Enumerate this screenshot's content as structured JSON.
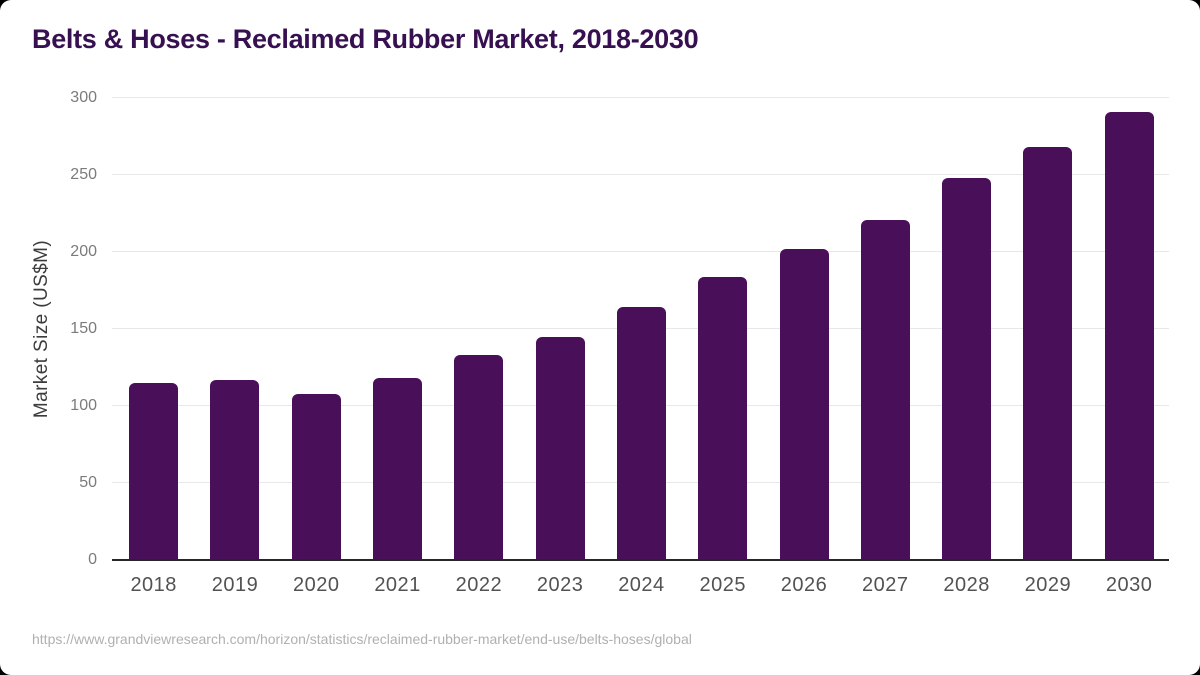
{
  "page": {
    "source_url": "https://www.grandviewresearch.com/horizon/statistics/reclaimed-rubber-market/end-use/belts-hoses/global"
  },
  "colors": {
    "title": "#371052",
    "bar": "#491059",
    "y_tick_label": "#7b7b7b",
    "x_tick_label": "#525252",
    "y_axis_title": "#3c3c3c",
    "gridline": "#e8e8e8",
    "axis_line": "#262626",
    "footer": "#b0b0b0",
    "card_background": "#ffffff"
  },
  "chart_data": {
    "type": "bar",
    "title": "Belts & Hoses - Reclaimed Rubber Market, 2018-2030",
    "categories": [
      "2018",
      "2019",
      "2020",
      "2021",
      "2022",
      "2023",
      "2024",
      "2025",
      "2026",
      "2027",
      "2028",
      "2029",
      "2030"
    ],
    "values": [
      115,
      117,
      108,
      118,
      133,
      145,
      164,
      184,
      202,
      221,
      248,
      268,
      291
    ],
    "xlabel": "",
    "ylabel": "Market Size (US$M)",
    "ylim": [
      0,
      300
    ],
    "yticks": [
      0,
      50,
      100,
      150,
      200,
      250,
      300
    ],
    "grid": true,
    "legend": false,
    "bar_color": "#491059"
  }
}
